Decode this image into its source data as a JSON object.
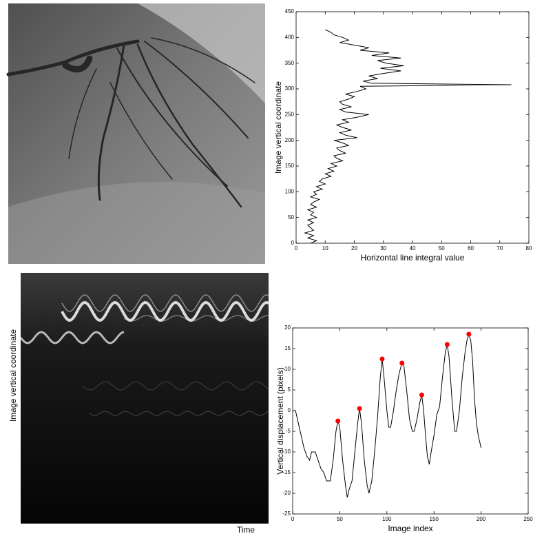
{
  "chart_data": [
    {
      "type": "line",
      "xlabel": "Horizontal line integral value",
      "ylabel": "Image vertical coordinate",
      "xlim": [
        0,
        80
      ],
      "ylim": [
        0,
        450
      ],
      "xticks": [
        0,
        10,
        20,
        30,
        40,
        50,
        60,
        70,
        80
      ],
      "yticks": [
        0,
        50,
        100,
        150,
        200,
        250,
        300,
        350,
        400,
        450
      ],
      "series": [
        {
          "color": "#000000",
          "x": [
            5,
            7,
            4,
            6,
            3,
            6,
            5,
            4,
            6,
            4,
            7,
            5,
            6,
            4,
            7,
            5,
            6,
            8,
            5,
            7,
            6,
            9,
            7,
            10,
            8,
            9,
            12,
            10,
            13,
            11,
            14,
            12,
            16,
            14,
            13,
            17,
            15,
            14,
            18,
            16,
            13,
            21,
            17,
            15,
            19,
            16,
            14,
            18,
            16,
            21,
            25,
            17,
            15,
            19,
            16,
            15,
            18,
            20,
            17,
            21,
            24,
            22,
            74,
            26,
            23,
            28,
            25,
            30,
            36,
            29,
            37,
            31,
            28,
            36,
            26,
            32,
            22,
            25,
            20,
            15,
            18,
            16,
            13,
            12,
            10
          ],
          "values": [
            0,
            5,
            10,
            15,
            20,
            25,
            30,
            35,
            40,
            45,
            50,
            55,
            60,
            65,
            70,
            75,
            80,
            85,
            90,
            95,
            100,
            105,
            110,
            115,
            120,
            125,
            130,
            135,
            140,
            145,
            150,
            155,
            160,
            165,
            170,
            175,
            180,
            185,
            190,
            195,
            200,
            205,
            210,
            215,
            220,
            225,
            230,
            235,
            240,
            245,
            250,
            255,
            260,
            265,
            270,
            275,
            280,
            285,
            290,
            295,
            300,
            305,
            308,
            311,
            315,
            320,
            325,
            330,
            335,
            340,
            345,
            350,
            355,
            360,
            365,
            370,
            375,
            380,
            385,
            390,
            395,
            400,
            405,
            410,
            415
          ]
        }
      ]
    },
    {
      "type": "line",
      "xlabel": "Image index",
      "ylabel": "Vertical displacement (pixels)",
      "xlim": [
        0,
        250
      ],
      "ylim": [
        -25,
        20
      ],
      "xticks": [
        0,
        50,
        100,
        150,
        200,
        250
      ],
      "yticks": [
        -25,
        -20,
        -15,
        -10,
        -5,
        0,
        5,
        10,
        15,
        20
      ],
      "series": [
        {
          "color": "#000000",
          "x": [
            0,
            3,
            6,
            9,
            12,
            15,
            18,
            20,
            24,
            27,
            30,
            33,
            36,
            40,
            43,
            46,
            48,
            50,
            53,
            56,
            58,
            60,
            63,
            66,
            69,
            71,
            73,
            76,
            79,
            81,
            84,
            87,
            90,
            93,
            95,
            97,
            100,
            102,
            104,
            107,
            110,
            113,
            116,
            118,
            121,
            124,
            127,
            129,
            132,
            135,
            137,
            139,
            141,
            143,
            145,
            147,
            150,
            153,
            156,
            159,
            162,
            164,
            166,
            169,
            172,
            174,
            177,
            180,
            183,
            185,
            187,
            189,
            191,
            193,
            195,
            197,
            199,
            200
          ],
          "values": [
            0,
            0,
            -3,
            -6,
            -9,
            -11,
            -12,
            -10,
            -10,
            -12,
            -14,
            -15,
            -17,
            -17,
            -12,
            -5,
            -2.5,
            -4,
            -12,
            -18,
            -21,
            -19,
            -17,
            -10,
            -3,
            0.5,
            -3,
            -12,
            -18,
            -20,
            -17,
            -10,
            -2,
            8,
            12.5,
            8,
            0,
            -4,
            -4,
            0,
            5,
            9,
            11.5,
            11,
            5,
            -2,
            -5,
            -5,
            -2,
            2,
            3.8,
            0,
            -6,
            -11,
            -13,
            -10,
            -6,
            -1,
            1,
            8,
            14,
            16,
            13,
            3,
            -5,
            -5,
            0,
            8,
            14,
            17,
            18.5,
            17,
            12,
            3,
            -3,
            -6,
            -8,
            -9
          ]
        },
        {
          "color": "#ff0000",
          "style": "markers",
          "x": [
            48,
            71,
            95,
            116,
            137,
            164,
            187
          ],
          "values": [
            -2.5,
            0.5,
            12.5,
            11.5,
            3.8,
            16,
            18.5
          ]
        }
      ]
    }
  ],
  "kymograph": {
    "ylabel": "Image vertical coordinate",
    "xlabel": "Time"
  }
}
